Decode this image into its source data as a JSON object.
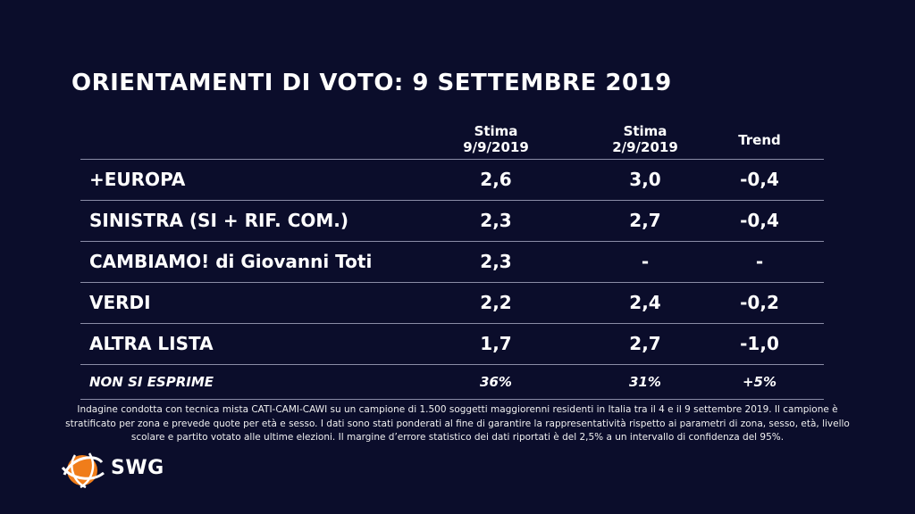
{
  "title": "ORIENTAMENTI DI VOTO: 9 SETTEMBRE 2019",
  "table": {
    "headers": {
      "col1_line1": "Stima",
      "col1_line2": "9/9/2019",
      "col2_line1": "Stima",
      "col2_line2": "2/9/2019",
      "col3": "Trend"
    },
    "rows": [
      {
        "label": "+EUROPA",
        "stima_9_9": "2,6",
        "stima_2_9": "3,0",
        "trend": "-0,4"
      },
      {
        "label": "SINISTRA (SI + RIF. COM.)",
        "stima_9_9": "2,3",
        "stima_2_9": "2,7",
        "trend": "-0,4"
      },
      {
        "label": "CAMBIAMO! di Giovanni Toti",
        "stima_9_9": "2,3",
        "stima_2_9": "-",
        "trend": "-"
      },
      {
        "label": "VERDI",
        "stima_9_9": "2,2",
        "stima_2_9": "2,4",
        "trend": "-0,2"
      },
      {
        "label": "ALTRA LISTA",
        "stima_9_9": "1,7",
        "stima_2_9": "2,7",
        "trend": "-1,0"
      }
    ],
    "footer": {
      "label": "NON SI ESPRIME",
      "stima_9_9": "36%",
      "stima_2_9": "31%",
      "trend": "+5%"
    }
  },
  "note": "Indagine condotta con tecnica mista CATI-CAMI-CAWI su un campione di 1.500 soggetti maggiorenni residenti in Italia tra il 4 e il  9 settembre 2019. Il campione è stratificato per zona e prevede quote per età e sesso. I dati sono stati ponderati al fine di garantire la rappresentatività rispetto ai parametri di zona, sesso, età, livello scolare e partito votato alle ultime elezioni. Il margine d’errore statistico dei dati riportati è del 2,5% a un intervallo di confidenza del 95%.",
  "logo": {
    "text": "SWG",
    "icon": "swg-globe-icon",
    "colors": {
      "orange": "#f07d1a",
      "white": "#ffffff"
    }
  },
  "colors": {
    "background": "#0b0d2b",
    "rule": "#8a8ca6",
    "text": "#ffffff"
  }
}
